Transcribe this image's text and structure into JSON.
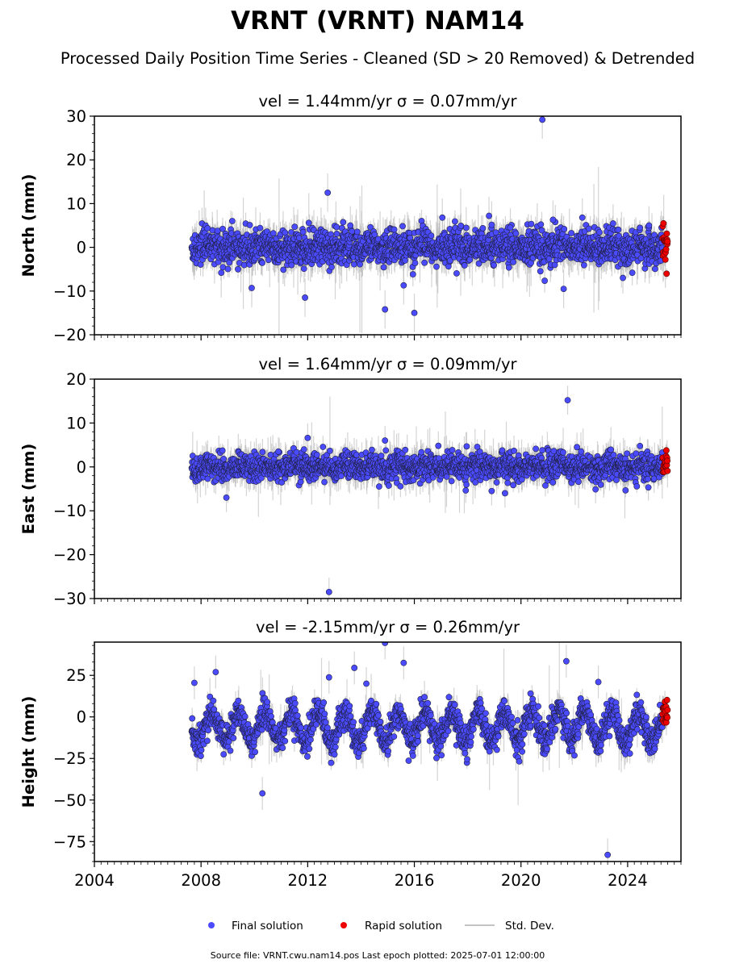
{
  "title": "VRNT (VRNT) NAM14",
  "subtitle": "Processed Daily Position Time Series - Cleaned (SD > 20 Removed) & Detrended",
  "colors": {
    "final": "#4a4aff",
    "rapid": "#ee0000",
    "stddev": "#b0b0b0",
    "edge": "#222244"
  },
  "legend": {
    "final": "Final solution",
    "rapid": "Rapid solution",
    "stddev": "Std. Dev.",
    "placement": "bottom-center"
  },
  "footer": "Source file: VRNT.cwu.nam14.pos  Last epoch plotted: 2025-07-01 12:00:00",
  "chart_data": [
    {
      "type": "scatter",
      "title": "vel = 1.44mm/yr   σ = 0.07mm/yr",
      "ylabel": "North (mm)",
      "xlim": [
        2004,
        2026
      ],
      "ylim": [
        -20,
        30
      ],
      "yticks": [
        -20,
        -10,
        0,
        10,
        20,
        30
      ],
      "xticks": [
        2004,
        2008,
        2012,
        2016,
        2020,
        2024
      ],
      "grid": false,
      "time_span": [
        2007.65,
        2025.5
      ],
      "rapid_span": [
        2025.3,
        2025.5
      ],
      "scatter_sd": 2.0,
      "seasonal_amp": 0.5,
      "outliers": [
        {
          "x": 2012.75,
          "y": 12.5
        },
        {
          "x": 2020.8,
          "y": 29.2
        },
        {
          "x": 2014.9,
          "y": -14.2
        },
        {
          "x": 2016.0,
          "y": -15.0
        },
        {
          "x": 2011.9,
          "y": -11.5
        },
        {
          "x": 2018.8,
          "y": 7.2
        },
        {
          "x": 2017.05,
          "y": 6.8
        },
        {
          "x": 2021.2,
          "y": 6.3
        },
        {
          "x": 2022.3,
          "y": 6.8
        },
        {
          "x": 2015.6,
          "y": -8.7
        },
        {
          "x": 2009.9,
          "y": -9.3
        },
        {
          "x": 2021.6,
          "y": -9.5
        },
        {
          "x": 2013.6,
          "y": 5.0
        },
        {
          "x": 2024.8,
          "y": 5.0
        },
        {
          "x": 2019.6,
          "y": 4.5
        }
      ]
    },
    {
      "type": "scatter",
      "title": "vel = 1.64mm/yr   σ = 0.09mm/yr",
      "ylabel": "East (mm)",
      "xlim": [
        2004,
        2026
      ],
      "ylim": [
        -30,
        20
      ],
      "yticks": [
        -30,
        -20,
        -10,
        0,
        10,
        20
      ],
      "xticks": [
        2004,
        2008,
        2012,
        2016,
        2020,
        2024
      ],
      "grid": false,
      "time_span": [
        2007.65,
        2025.5
      ],
      "rapid_span": [
        2025.3,
        2025.5
      ],
      "scatter_sd": 1.5,
      "seasonal_amp": 0.4,
      "outliers": [
        {
          "x": 2012.8,
          "y": -28.5
        },
        {
          "x": 2021.75,
          "y": 15.2
        },
        {
          "x": 2012.0,
          "y": 6.6
        },
        {
          "x": 2014.9,
          "y": 6.0
        },
        {
          "x": 2008.95,
          "y": -7.0
        },
        {
          "x": 2020.8,
          "y": 3.8
        },
        {
          "x": 2016.9,
          "y": 4.8
        },
        {
          "x": 2019.4,
          "y": -6.0
        },
        {
          "x": 2022.1,
          "y": 4.5
        },
        {
          "x": 2010.9,
          "y": 3.5
        },
        {
          "x": 2018.9,
          "y": -5.5
        }
      ]
    },
    {
      "type": "scatter",
      "title": "vel = -2.15mm/yr   σ = 0.26mm/yr",
      "ylabel": "Height (mm)",
      "xlim": [
        2004,
        2026
      ],
      "ylim": [
        -87,
        45
      ],
      "yticks": [
        -75,
        -50,
        -25,
        0,
        25
      ],
      "xticks": [
        2004,
        2008,
        2012,
        2016,
        2020,
        2024
      ],
      "grid": false,
      "time_span": [
        2007.65,
        2025.5
      ],
      "rapid_span": [
        2025.3,
        2025.5
      ],
      "scatter_sd": 4.5,
      "seasonal_amp": 9.0,
      "baseline": -6,
      "outliers": [
        {
          "x": 2010.3,
          "y": -46.0
        },
        {
          "x": 2023.25,
          "y": -83.0
        },
        {
          "x": 2014.9,
          "y": 44.5
        },
        {
          "x": 2015.6,
          "y": 32.5
        },
        {
          "x": 2021.7,
          "y": 33.5
        },
        {
          "x": 2013.75,
          "y": 29.5
        },
        {
          "x": 2008.55,
          "y": 27.0
        },
        {
          "x": 2012.8,
          "y": 23.8
        },
        {
          "x": 2022.9,
          "y": 21.0
        },
        {
          "x": 2014.2,
          "y": 20.0
        },
        {
          "x": 2007.75,
          "y": 20.5
        }
      ]
    }
  ]
}
